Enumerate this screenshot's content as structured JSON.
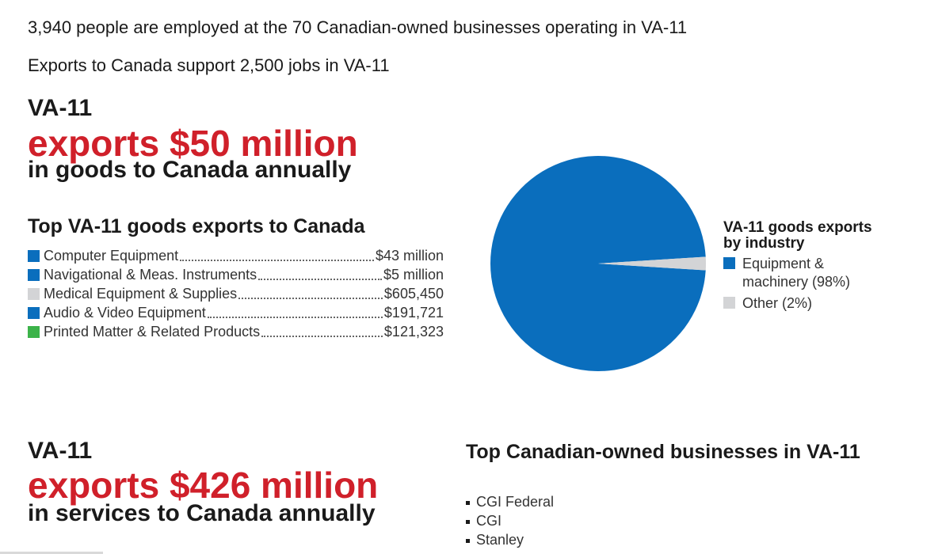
{
  "stats": {
    "employment": "3,940 people are employed at the 70 Canadian-owned businesses operating in VA-11",
    "jobs": "Exports to Canada support 2,500 jobs in VA-11"
  },
  "goods": {
    "region": "VA-11",
    "headline": "exports $50 million",
    "subline": "in goods to Canada annually",
    "top_title": "Top VA-11 goods exports to Canada",
    "items": [
      {
        "name": "Computer Equipment",
        "value": "$43 million",
        "color": "#0a6ebd"
      },
      {
        "name": "Navigational & Meas. Instruments",
        "value": "$5 million",
        "color": "#0a6ebd"
      },
      {
        "name": "Medical Equipment & Supplies",
        "value": "$605,450",
        "color": "#d3d4d6"
      },
      {
        "name": "Audio & Video Equipment",
        "value": "$191,721",
        "color": "#0a6ebd"
      },
      {
        "name": "Printed Matter & Related Products",
        "value": "$121,323",
        "color": "#3cb34a"
      }
    ]
  },
  "chart_data": {
    "type": "pie",
    "title": "VA-11 goods exports by industry",
    "categories": [
      "Equipment & machinery (98%)",
      "Other (2%)"
    ],
    "values": [
      98,
      2
    ],
    "colors": [
      "#0a6ebd",
      "#d3d4d6"
    ],
    "legend_position": "right"
  },
  "services": {
    "region": "VA-11",
    "headline": "exports $426 million",
    "subline": "in services to Canada annually"
  },
  "businesses": {
    "title": "Top Canadian-owned businesses in VA-11",
    "items": [
      "CGI Federal",
      "CGI",
      "Stanley"
    ]
  },
  "colors": {
    "accent_red": "#d0202a",
    "blue": "#0a6ebd",
    "gray": "#d3d4d6",
    "green": "#3cb34a"
  }
}
